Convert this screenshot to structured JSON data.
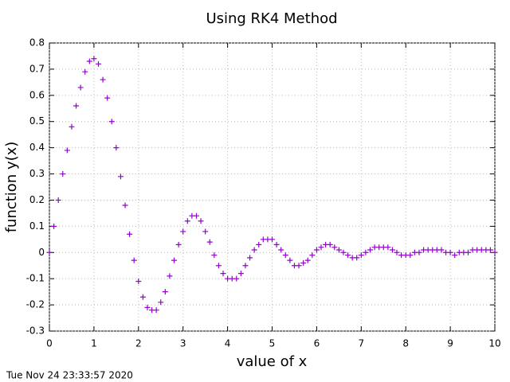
{
  "chart_data": {
    "type": "scatter",
    "title": "Using RK4 Method",
    "x_label": "value of x",
    "y_label": "function y(x)",
    "timestamp": "Tue Nov 24 23:33:57 2020",
    "color": "#9400d3",
    "grid": true,
    "xlim": [
      0,
      10
    ],
    "ylim": [
      -0.3,
      0.8
    ],
    "xticks": [
      0,
      1,
      2,
      3,
      4,
      5,
      6,
      7,
      8,
      9,
      10
    ],
    "yticks": [
      -0.3,
      -0.2,
      -0.1,
      0,
      0.1,
      0.2,
      0.3,
      0.4,
      0.5,
      0.6,
      0.7,
      0.8
    ],
    "x": [
      0,
      0.1,
      0.2,
      0.3,
      0.4,
      0.5,
      0.6,
      0.7,
      0.8,
      0.9,
      1,
      1.1,
      1.2,
      1.3,
      1.4,
      1.5,
      1.6,
      1.7,
      1.8,
      1.9,
      2,
      2.1,
      2.2,
      2.3,
      2.4,
      2.5,
      2.6,
      2.7,
      2.8,
      2.9,
      3,
      3.1,
      3.2,
      3.3,
      3.4,
      3.5,
      3.6,
      3.7,
      3.8,
      3.9,
      4,
      4.1,
      4.2,
      4.3,
      4.4,
      4.5,
      4.6,
      4.7,
      4.8,
      4.9,
      5,
      5.1,
      5.2,
      5.3,
      5.4,
      5.5,
      5.6,
      5.7,
      5.8,
      5.9,
      6,
      6.1,
      6.2,
      6.3,
      6.4,
      6.5,
      6.6,
      6.7,
      6.8,
      6.9,
      7,
      7.1,
      7.2,
      7.3,
      7.4,
      7.5,
      7.6,
      7.7,
      7.8,
      7.9,
      8,
      8.1,
      8.2,
      8.3,
      8.4,
      8.5,
      8.6,
      8.7,
      8.8,
      8.9,
      9,
      9.1,
      9.2,
      9.3,
      9.4,
      9.5,
      9.6,
      9.7,
      9.8,
      9.9,
      10
    ],
    "values": [
      0,
      0.1,
      0.2,
      0.3,
      0.39,
      0.48,
      0.56,
      0.63,
      0.69,
      0.73,
      0.74,
      0.72,
      0.66,
      0.59,
      0.5,
      0.4,
      0.29,
      0.18,
      0.07,
      -0.03,
      -0.11,
      -0.17,
      -0.21,
      -0.22,
      -0.22,
      -0.19,
      -0.15,
      -0.09,
      -0.03,
      0.03,
      0.08,
      0.12,
      0.14,
      0.14,
      0.12,
      0.08,
      0.04,
      -0.01,
      -0.05,
      -0.08,
      -0.1,
      -0.1,
      -0.1,
      -0.08,
      -0.05,
      -0.02,
      0.01,
      0.03,
      0.05,
      0.05,
      0.05,
      0.03,
      0.01,
      -0.01,
      -0.03,
      -0.05,
      -0.05,
      -0.04,
      -0.03,
      -0.01,
      0.01,
      0.02,
      0.03,
      0.03,
      0.02,
      0.01,
      0,
      -0.01,
      -0.02,
      -0.02,
      -0.01,
      0,
      0.01,
      0.02,
      0.02,
      0.02,
      0.02,
      0.01,
      0,
      -0.01,
      -0.01,
      -0.01,
      0,
      0,
      0.01,
      0.01,
      0.01,
      0.01,
      0.01,
      0,
      0,
      -0.01,
      0,
      0,
      0,
      0.01,
      0.01,
      0.01,
      0.01,
      0.01,
      0
    ]
  }
}
